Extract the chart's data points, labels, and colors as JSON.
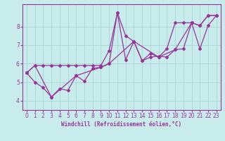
{
  "xlabel": "Windchill (Refroidissement éolien,°C)",
  "background_color": "#c8ecec",
  "grid_color": "#aad4d4",
  "line_color": "#993399",
  "xlim": [
    -0.5,
    23.5
  ],
  "ylim": [
    3.5,
    9.2
  ],
  "yticks": [
    4,
    5,
    6,
    7,
    8
  ],
  "xticks": [
    0,
    1,
    2,
    3,
    4,
    5,
    6,
    7,
    8,
    9,
    10,
    11,
    12,
    13,
    14,
    15,
    16,
    17,
    18,
    19,
    20,
    21,
    22,
    23
  ],
  "series": [
    {
      "x": [
        0,
        1,
        2,
        3,
        4,
        5,
        6,
        7,
        8,
        9,
        10,
        11,
        12,
        13,
        14,
        15,
        16,
        17,
        18,
        19,
        20,
        21,
        22,
        23
      ],
      "y": [
        5.5,
        5.9,
        5.9,
        5.9,
        5.9,
        5.9,
        5.9,
        5.9,
        5.9,
        5.9,
        6.7,
        8.75,
        7.5,
        7.2,
        6.15,
        6.55,
        6.35,
        6.8,
        8.2,
        8.2,
        8.2,
        8.05,
        8.6,
        8.6
      ]
    },
    {
      "x": [
        0,
        1,
        2,
        3,
        4,
        5,
        6,
        7,
        8,
        9,
        10,
        11,
        12,
        13,
        14,
        15,
        16,
        17,
        18,
        19,
        20,
        21,
        22,
        23
      ],
      "y": [
        5.5,
        5.0,
        4.7,
        4.2,
        4.65,
        4.55,
        5.35,
        5.05,
        5.75,
        5.8,
        6.0,
        8.75,
        6.2,
        7.2,
        6.15,
        6.35,
        6.4,
        6.35,
        6.75,
        6.8,
        8.2,
        6.8,
        8.05,
        8.6
      ]
    },
    {
      "x": [
        0,
        1,
        3,
        6,
        9,
        10,
        13,
        16,
        18,
        20,
        21,
        22,
        23
      ],
      "y": [
        5.5,
        5.9,
        4.2,
        5.35,
        5.8,
        6.0,
        7.2,
        6.35,
        6.75,
        8.2,
        8.05,
        8.6,
        8.6
      ]
    }
  ]
}
